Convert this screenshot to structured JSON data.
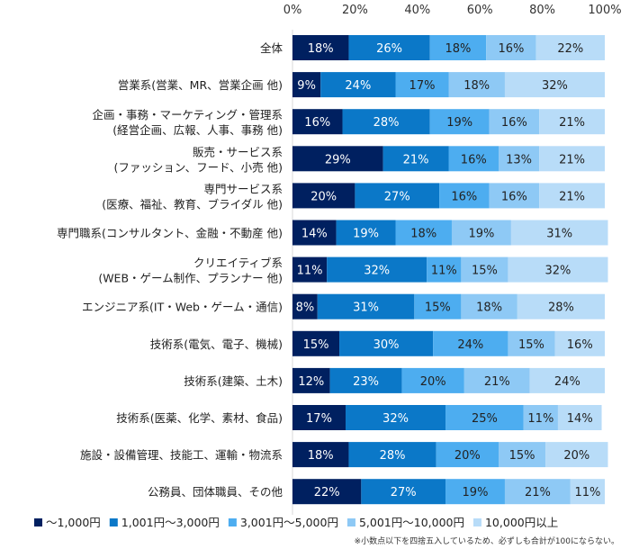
{
  "chart_data": {
    "type": "bar",
    "orientation": "horizontal",
    "stacked": true,
    "xlim": [
      0,
      100
    ],
    "x_ticks": [
      "0%",
      "20%",
      "40%",
      "60%",
      "80%",
      "100%"
    ],
    "grid": false,
    "legend_position": "bottom",
    "categories": [
      [
        "全体"
      ],
      [
        "営業系(営業、MR、営業企画 他)"
      ],
      [
        "企画・事務・マーケティング・管理系",
        "(経営企画、広報、人事、事務 他)"
      ],
      [
        "販売・サービス系",
        "(ファッション、フード、小売 他)"
      ],
      [
        "専門サービス系",
        "(医療、福祉、教育、ブライダル 他)"
      ],
      [
        "専門職系(コンサルタント、金融・不動産 他)"
      ],
      [
        "クリエイティブ系",
        "(WEB・ゲーム制作、プランナー 他)"
      ],
      [
        "エンジニア系(IT・Web・ゲーム・通信)"
      ],
      [
        "技術系(電気、電子、機械)"
      ],
      [
        "技術系(建築、土木)"
      ],
      [
        "技術系(医薬、化学、素材、食品)"
      ],
      [
        "施設・設備管理、技能工、運輸・物流系"
      ],
      [
        "公務員、団体職員、その他"
      ]
    ],
    "series": [
      {
        "name": "～1,000円",
        "color": "#002060",
        "values": [
          18,
          9,
          16,
          29,
          20,
          14,
          11,
          8,
          15,
          12,
          17,
          18,
          22
        ]
      },
      {
        "name": "1,001円～3,000円",
        "color": "#0b78c8",
        "values": [
          26,
          24,
          28,
          21,
          27,
          19,
          32,
          31,
          30,
          23,
          32,
          28,
          27
        ]
      },
      {
        "name": "3,001円～5,000円",
        "color": "#4dadf0",
        "values": [
          18,
          17,
          19,
          16,
          16,
          18,
          11,
          15,
          24,
          20,
          25,
          20,
          19
        ]
      },
      {
        "name": "5,001円～10,000円",
        "color": "#8ec9f5",
        "values": [
          16,
          18,
          16,
          13,
          16,
          19,
          15,
          18,
          15,
          21,
          11,
          15,
          21
        ]
      },
      {
        "name": "10,000円以上",
        "color": "#b8dcf8",
        "values": [
          22,
          32,
          21,
          21,
          21,
          31,
          32,
          28,
          16,
          24,
          14,
          20,
          11
        ]
      }
    ],
    "annotations": [
      "※小数点以下を四捨五入しているため、必ずしも合計が100にならない。"
    ]
  }
}
